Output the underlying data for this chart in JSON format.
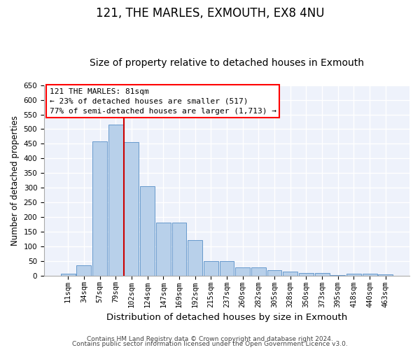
{
  "title": "121, THE MARLES, EXMOUTH, EX8 4NU",
  "subtitle": "Size of property relative to detached houses in Exmouth",
  "xlabel": "Distribution of detached houses by size in Exmouth",
  "ylabel": "Number of detached properties",
  "categories": [
    "11sqm",
    "34sqm",
    "57sqm",
    "79sqm",
    "102sqm",
    "124sqm",
    "147sqm",
    "169sqm",
    "192sqm",
    "215sqm",
    "237sqm",
    "260sqm",
    "282sqm",
    "305sqm",
    "328sqm",
    "350sqm",
    "373sqm",
    "395sqm",
    "418sqm",
    "440sqm",
    "463sqm"
  ],
  "values": [
    7,
    35,
    458,
    515,
    455,
    305,
    180,
    180,
    120,
    50,
    50,
    27,
    27,
    18,
    13,
    9,
    9,
    2,
    7,
    7,
    4
  ],
  "bar_color": "#b8d0ea",
  "bar_edge_color": "#6699cc",
  "annotation_line1": "121 THE MARLES: 81sqm",
  "annotation_line2": "← 23% of detached houses are smaller (517)",
  "annotation_line3": "77% of semi-detached houses are larger (1,713) →",
  "vline_x_index": 3,
  "vline_color": "#cc0000",
  "ylim": [
    0,
    650
  ],
  "yticks": [
    0,
    50,
    100,
    150,
    200,
    250,
    300,
    350,
    400,
    450,
    500,
    550,
    600,
    650
  ],
  "footer_line1": "Contains HM Land Registry data © Crown copyright and database right 2024.",
  "footer_line2": "Contains public sector information licensed under the Open Government Licence v3.0.",
  "background_color": "#eef2fb",
  "grid_color": "#ffffff",
  "title_fontsize": 12,
  "subtitle_fontsize": 10,
  "xlabel_fontsize": 9.5,
  "ylabel_fontsize": 8.5,
  "tick_fontsize": 7.5,
  "annotation_fontsize": 8,
  "footer_fontsize": 6.5
}
